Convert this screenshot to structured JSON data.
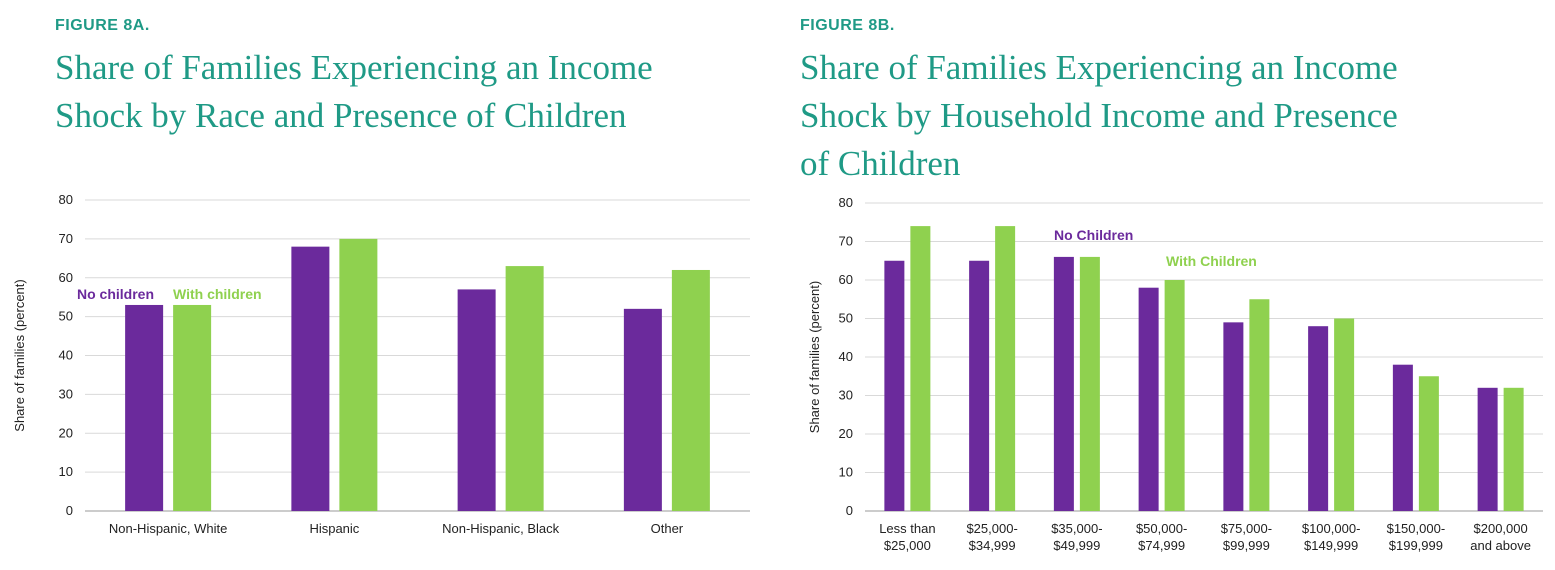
{
  "colors": {
    "no_children": "#6b2a9c",
    "with_children": "#8fd14f",
    "title": "#1f9a86",
    "grid": "#d9d9d9"
  },
  "figure_a": {
    "label": "FIGURE 8A.",
    "title_lines": [
      "Share of Families Experiencing an Income",
      "Shock by Race and Presence of Children"
    ]
  },
  "figure_b": {
    "label": "FIGURE 8B.",
    "title_lines": [
      "Share of Families Experiencing an Income",
      "Shock by Household Income and Presence",
      "of Children"
    ]
  },
  "chart_data": [
    {
      "type": "bar",
      "categories": [
        [
          "Non-Hispanic, White"
        ],
        [
          "Hispanic"
        ],
        [
          "Non-Hispanic, Black"
        ],
        [
          "Other"
        ]
      ],
      "series": [
        {
          "name": "No children",
          "values": [
            53,
            68,
            57,
            52
          ]
        },
        {
          "name": "With children",
          "values": [
            53,
            70,
            63,
            62
          ]
        }
      ],
      "ylabel": "Share of families (percent)",
      "ylim": [
        0,
        80
      ],
      "yticks": [
        0,
        10,
        20,
        30,
        40,
        50,
        60,
        70,
        80
      ],
      "grid": true,
      "legend_placement": "inline above first category"
    },
    {
      "type": "bar",
      "categories": [
        [
          "Less than",
          "$25,000"
        ],
        [
          "$25,000-",
          "$34,999"
        ],
        [
          "$35,000-",
          "$49,999"
        ],
        [
          "$50,000-",
          "$74,999"
        ],
        [
          "$75,000-",
          "$99,999"
        ],
        [
          "$100,000-",
          "$149,999"
        ],
        [
          "$150,000-",
          "$199,999"
        ],
        [
          "$200,000",
          "and above"
        ]
      ],
      "series": [
        {
          "name": "No Children",
          "values": [
            65,
            65,
            66,
            58,
            49,
            48,
            38,
            32
          ]
        },
        {
          "name": "With Children",
          "values": [
            74,
            74,
            66,
            60,
            55,
            50,
            35,
            32
          ]
        }
      ],
      "ylabel": "Share of families (percent)",
      "ylim": [
        0,
        80
      ],
      "yticks": [
        0,
        10,
        20,
        30,
        40,
        50,
        60,
        70,
        80
      ],
      "grid": true,
      "legend_placement": "inline above third and fourth categories"
    }
  ]
}
